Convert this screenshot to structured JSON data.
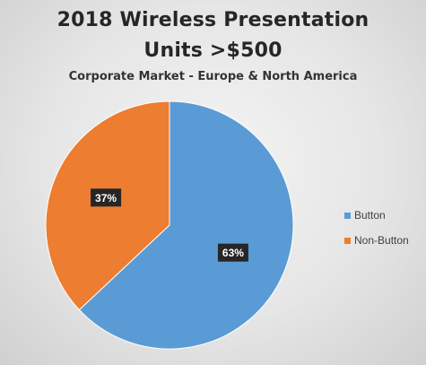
{
  "chart_data": {
    "type": "pie",
    "title_line1": "2018 Wireless Presentation",
    "title_line2": "Units >$500",
    "subtitle": "Corporate Market - Europe & North America",
    "categories": [
      "Button",
      "Non-Button"
    ],
    "values": [
      63,
      37
    ],
    "data_labels": [
      "63%",
      "37%"
    ],
    "colors": [
      "#5b9bd5",
      "#ed7d31"
    ],
    "label_box_color": "#262626",
    "label_text_color": "#ffffff",
    "legend_position": "right"
  }
}
